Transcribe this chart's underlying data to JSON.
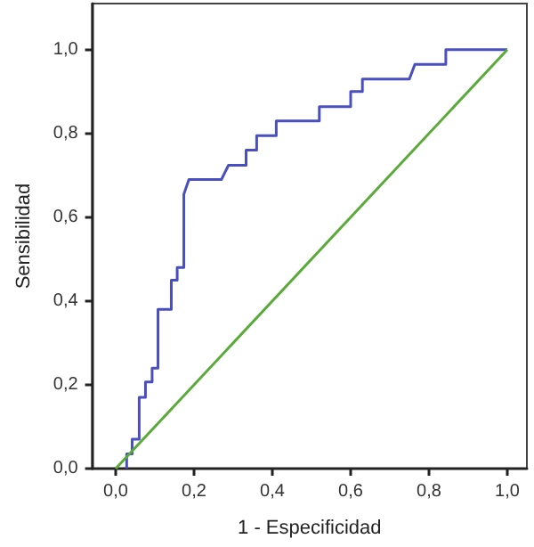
{
  "chart_data": {
    "type": "line",
    "xlabel": "1 - Especificidad",
    "ylabel": "Sensibilidad",
    "xlim": [
      -0.06,
      1.05
    ],
    "ylim": [
      0,
      1.11
    ],
    "xticks": [
      {
        "value": 0,
        "label": "0,0"
      },
      {
        "value": 0.2,
        "label": "0,2"
      },
      {
        "value": 0.4,
        "label": "0,4"
      },
      {
        "value": 0.6,
        "label": "0,6"
      },
      {
        "value": 0.8,
        "label": "0,8"
      },
      {
        "value": 1,
        "label": "1,0"
      }
    ],
    "yticks": [
      {
        "value": 0,
        "label": "0,0"
      },
      {
        "value": 0.2,
        "label": "0,2"
      },
      {
        "value": 0.4,
        "label": "0,4"
      },
      {
        "value": 0.6,
        "label": "0,6"
      },
      {
        "value": 0.8,
        "label": "0,8"
      },
      {
        "value": 1,
        "label": "1,0"
      }
    ],
    "grid": false,
    "marker": "none",
    "line_style": "solid",
    "series": [
      {
        "color": "#4a4fc0",
        "x": [
          0.028,
          0.028,
          0.042,
          0.042,
          0.06,
          0.06,
          0.076,
          0.076,
          0.093,
          0.093,
          0.108,
          0.108,
          0.142,
          0.142,
          0.157,
          0.157,
          0.174,
          0.174,
          0.187,
          0.27,
          0.288,
          0.333,
          0.333,
          0.36,
          0.36,
          0.41,
          0.41,
          0.52,
          0.52,
          0.6,
          0.6,
          0.63,
          0.63,
          0.75,
          0.764,
          0.843,
          0.843,
          1.0
        ],
        "values": [
          0,
          0.035,
          0.035,
          0.07,
          0.07,
          0.17,
          0.17,
          0.207,
          0.207,
          0.24,
          0.24,
          0.38,
          0.38,
          0.45,
          0.45,
          0.48,
          0.48,
          0.655,
          0.69,
          0.69,
          0.724,
          0.724,
          0.76,
          0.76,
          0.795,
          0.795,
          0.83,
          0.83,
          0.864,
          0.864,
          0.9,
          0.9,
          0.93,
          0.93,
          0.965,
          0.965,
          1.0,
          1.0
        ]
      },
      {
        "color": "#5aaa3a",
        "x": [
          0,
          1
        ],
        "values": [
          0,
          1
        ]
      }
    ]
  }
}
